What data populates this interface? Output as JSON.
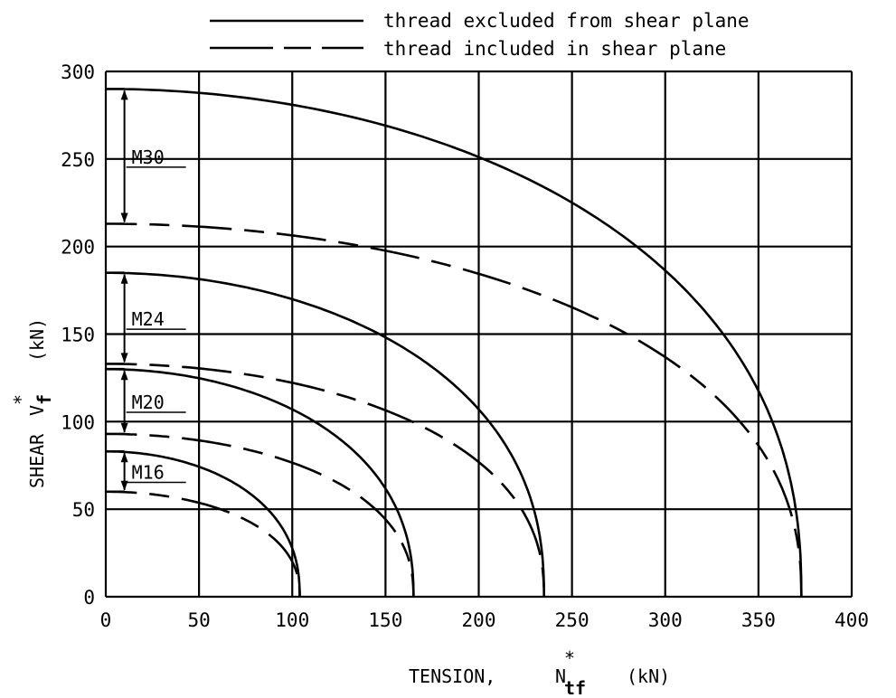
{
  "chart_data": {
    "type": "line",
    "xlabel": "TENSION,",
    "xlabel_symbol": "N",
    "xlabel_sub": "tf",
    "xlabel_unit": "(kN)",
    "ylabel": "SHEAR",
    "ylabel_symbol": "V",
    "ylabel_sub": "f",
    "ylabel_unit": "(kN)",
    "asterisk": "*",
    "xlim": [
      0,
      400
    ],
    "ylim": [
      0,
      300
    ],
    "xticks": [
      "0",
      "50",
      "100",
      "150",
      "200",
      "250",
      "300",
      "350",
      "400"
    ],
    "yticks": [
      "0",
      "50",
      "100",
      "150",
      "200",
      "250",
      "300"
    ],
    "grid": true,
    "legend_position": "top",
    "legend": [
      {
        "label": "thread excluded from shear plane",
        "style": "solid"
      },
      {
        "label": "thread included in shear plane",
        "style": "dashed"
      }
    ],
    "series": [
      {
        "bolt": "M30",
        "style": "solid",
        "shear_max": 290,
        "tension_max": 373
      },
      {
        "bolt": "M30",
        "style": "dashed",
        "shear_max": 213,
        "tension_max": 373
      },
      {
        "bolt": "M24",
        "style": "solid",
        "shear_max": 185,
        "tension_max": 235
      },
      {
        "bolt": "M24",
        "style": "dashed",
        "shear_max": 133,
        "tension_max": 235
      },
      {
        "bolt": "M20",
        "style": "solid",
        "shear_max": 130,
        "tension_max": 165
      },
      {
        "bolt": "M20",
        "style": "dashed",
        "shear_max": 93,
        "tension_max": 165
      },
      {
        "bolt": "M16",
        "style": "solid",
        "shear_max": 83,
        "tension_max": 104
      },
      {
        "bolt": "M16",
        "style": "dashed",
        "shear_max": 60,
        "tension_max": 104
      }
    ],
    "annotations": [
      {
        "text": "M30",
        "upper": 290,
        "lower": 213
      },
      {
        "text": "M24",
        "upper": 185,
        "lower": 133
      },
      {
        "text": "M20",
        "upper": 130,
        "lower": 93
      },
      {
        "text": "M16",
        "upper": 83,
        "lower": 60
      }
    ]
  }
}
